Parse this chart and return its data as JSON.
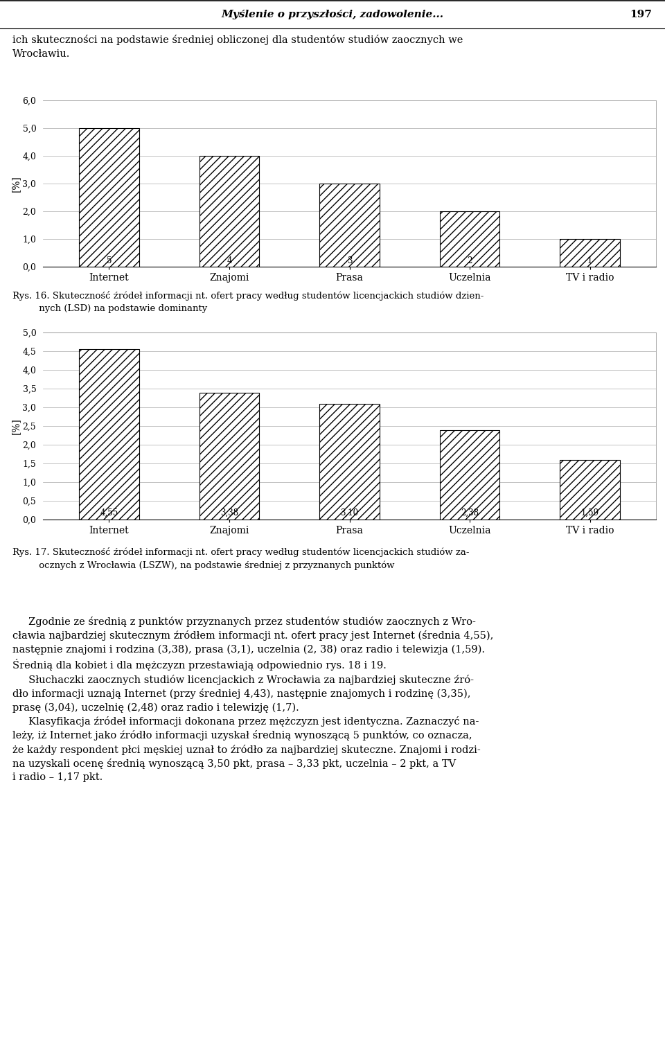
{
  "header_title": "Myślenie o przyszłości, zadowolenie...",
  "header_page": "197",
  "intro_text": "ich skuteczności na podstawie średniej obliczonej dla studentów studiów zaocznych we\nWrocławiu.",
  "chart1": {
    "categories": [
      "Internet",
      "Znajomi",
      "Prasa",
      "Uczelnia",
      "TV i radio"
    ],
    "values": [
      5,
      4,
      3,
      2,
      1
    ],
    "ylim": [
      0,
      6.0
    ],
    "yticks": [
      0.0,
      1.0,
      2.0,
      3.0,
      4.0,
      5.0,
      6.0
    ],
    "ytick_labels": [
      "0,0",
      "1,0",
      "2,0",
      "3,0",
      "4,0",
      "5,0",
      "6,0"
    ],
    "ylabel": "[%]",
    "bar_labels": [
      "5",
      "4",
      "3",
      "2",
      "1"
    ]
  },
  "caption1_line1": "Rys. 16. Skuteczność źródeł informacji nt. ofert pracy według studentów licencjackich studiów dzien-",
  "caption1_line2": "         nych (LSD) na podstawie dominanty",
  "chart2": {
    "categories": [
      "Internet",
      "Znajomi",
      "Prasa",
      "Uczelnia",
      "TV i radio"
    ],
    "values": [
      4.55,
      3.38,
      3.1,
      2.38,
      1.59
    ],
    "ylim": [
      0,
      5.0
    ],
    "yticks": [
      0.0,
      0.5,
      1.0,
      1.5,
      2.0,
      2.5,
      3.0,
      3.5,
      4.0,
      4.5,
      5.0
    ],
    "ytick_labels": [
      "0,0",
      "0,5",
      "1,0",
      "1,5",
      "2,0",
      "2,5",
      "3,0",
      "3,5",
      "4,0",
      "4,5",
      "5,0"
    ],
    "ylabel": "[%]",
    "bar_labels": [
      "4,55",
      "3,38",
      "3,10",
      "2,38",
      "1,59"
    ]
  },
  "caption2_line1": "Rys. 17. Skuteczność źródeł informacji nt. ofert pracy według studentów licencjackich studiów za-",
  "caption2_line2": "         ocznych z Wrocławia (LSZW), na podstawie średniej z przyznanych punktów",
  "body_paragraphs": [
    "     Zgodnie ze średnią z punktów przyznanych przez studentów studiów zaocznych z Wro-\ncławia najbardziej skutecznym źródłem informacji nt. ofert pracy jest Internet (średnia 4,55),\nnastępnie znajomi i rodzina (3,38), prasa (3,1), uczelnia (2, 38) oraz radio i telewizja (1,59).\nŚrednią dla kobiet i dla mężczyzn przestawiają odpowiednio rys. 18 i 19.",
    "     Słuchaczki zaocznych studiów licencjackich z Wrocławia za najbardziej skuteczne źró-\ndło informacji uznają Internet (przy średniej 4,43), następnie znajomych i rodzinę (3,35),\nprasę (3,04), uczelnię (2,48) oraz radio i telewizję (1,7).",
    "     Klasyfikacja źródeł informacji dokonana przez mężczyzn jest identyczna. Zaznaczyć na-\nleży, iż Internet jako źródło informacji uzyskał średnią wynoszącą 5 punktów, co oznacza,\nże każdy respondent płci męskiej uznał to źródło za najbardziej skuteczne. Znajomi i rodzi-\nna uzyskali ocenę średnią wynoszącą 3,50 pkt, prasa – 3,33 pkt, uczelnia – 2 pkt, a TV\ni radio – 1,17 pkt."
  ],
  "hatch_pattern": "///",
  "bar_color": "white",
  "bar_edgecolor": "black",
  "background_color": "white",
  "fig_width": 9.6,
  "fig_height": 15.1,
  "dpi": 100
}
